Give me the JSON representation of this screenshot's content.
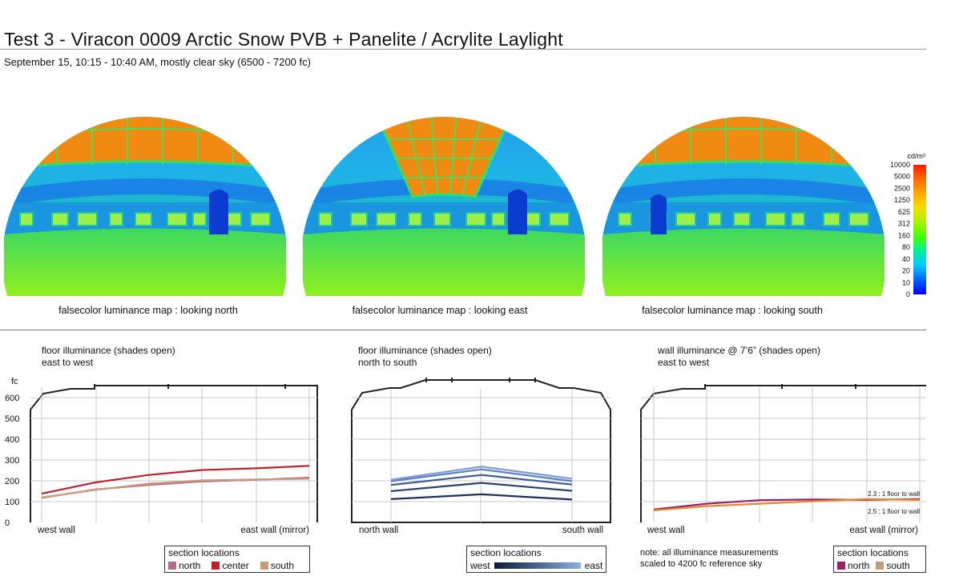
{
  "header": {
    "title": "Test 3 - Viracon 0009 Arctic Snow PVB + Panelite / Acrylite Laylight",
    "subtitle": "September 15, 10:15 - 10:40 AM, mostly clear sky (6500 - 7200 fc)"
  },
  "images": [
    {
      "caption": "falsecolor luminance map : looking north",
      "view": "north"
    },
    {
      "caption": "falsecolor luminance map : looking east",
      "view": "east"
    },
    {
      "caption": "falsecolor luminance map : looking south",
      "view": "south"
    }
  ],
  "scale_bar": {
    "unit": "cd/m²",
    "ticks": [
      "10000",
      "5000",
      "2500",
      "1250",
      "625",
      "312",
      "160",
      "80",
      "40",
      "20",
      "10",
      "0"
    ],
    "colors": [
      "#ff1a00",
      "#ff6a00",
      "#ffaa00",
      "#f0e000",
      "#a8f000",
      "#40ff00",
      "#00f0a0",
      "#00c8ff",
      "#0060ff",
      "#0000ff"
    ]
  },
  "chart_data": [
    {
      "type": "line",
      "title": "floor illuminance (shades open)",
      "subtitle": "east to west",
      "ylabel": "fc",
      "ylim": [
        0,
        650
      ],
      "yticks": [
        0,
        100,
        200,
        300,
        400,
        500,
        600
      ],
      "x_start_label": "west wall",
      "x_end_label": "east wall (mirror)",
      "x": [
        0,
        1,
        2,
        3,
        4,
        5
      ],
      "grid": true,
      "series": [
        {
          "name": "north",
          "color": "#b36a8c",
          "values": [
            118,
            158,
            180,
            197,
            205,
            215
          ]
        },
        {
          "name": "center",
          "color": "#c0202a",
          "values": [
            138,
            192,
            228,
            252,
            260,
            272
          ]
        },
        {
          "name": "south",
          "color": "#c79a7a",
          "values": [
            120,
            156,
            186,
            202,
            206,
            210
          ]
        }
      ],
      "legend": {
        "title": "section locations",
        "items": [
          "north",
          "center",
          "south"
        ]
      }
    },
    {
      "type": "line",
      "title": "floor illuminance (shades open)",
      "subtitle": "north to south",
      "ylim": [
        0,
        650
      ],
      "x_start_label": "north wall",
      "x_end_label": "south wall",
      "x": [
        0,
        1,
        2
      ],
      "grid": true,
      "series": [
        {
          "color": "#1e3058",
          "values": [
            112,
            135,
            110
          ]
        },
        {
          "color": "#2b4270",
          "values": [
            150,
            190,
            152
          ]
        },
        {
          "color": "#3f5a92",
          "values": [
            180,
            228,
            182
          ]
        },
        {
          "color": "#5d7ec0",
          "values": [
            198,
            255,
            198
          ]
        },
        {
          "color": "#7a9ada",
          "values": [
            205,
            268,
            210
          ]
        }
      ],
      "legend": {
        "title": "section locations",
        "start": "west",
        "end": "east",
        "gradient": [
          "#0c1a3a",
          "#8ab0e8"
        ]
      }
    },
    {
      "type": "line",
      "title": "wall illuminance @ 7’6” (shades open)",
      "subtitle": "east to west",
      "ylim": [
        0,
        650
      ],
      "x_start_label": "west wall",
      "x_end_label": "east wall (mirror)",
      "x": [
        0,
        1,
        2,
        3,
        4,
        5
      ],
      "grid": true,
      "series": [
        {
          "name": "north",
          "color": "#9a2068",
          "values": [
            62,
            90,
            107,
            110,
            108,
            112
          ]
        },
        {
          "name": "south",
          "color": "#e08a30",
          "values": [
            58,
            78,
            90,
            102,
            112,
            108
          ]
        }
      ],
      "annotations": [
        "2.3 : 1 floor to wall",
        "2.5 : 1 floor to wall"
      ],
      "note": [
        "note: all illuminance measurements",
        "scaled to 4200 fc reference sky"
      ],
      "legend": {
        "title": "section locations",
        "items": [
          "north",
          "south"
        ]
      }
    }
  ]
}
